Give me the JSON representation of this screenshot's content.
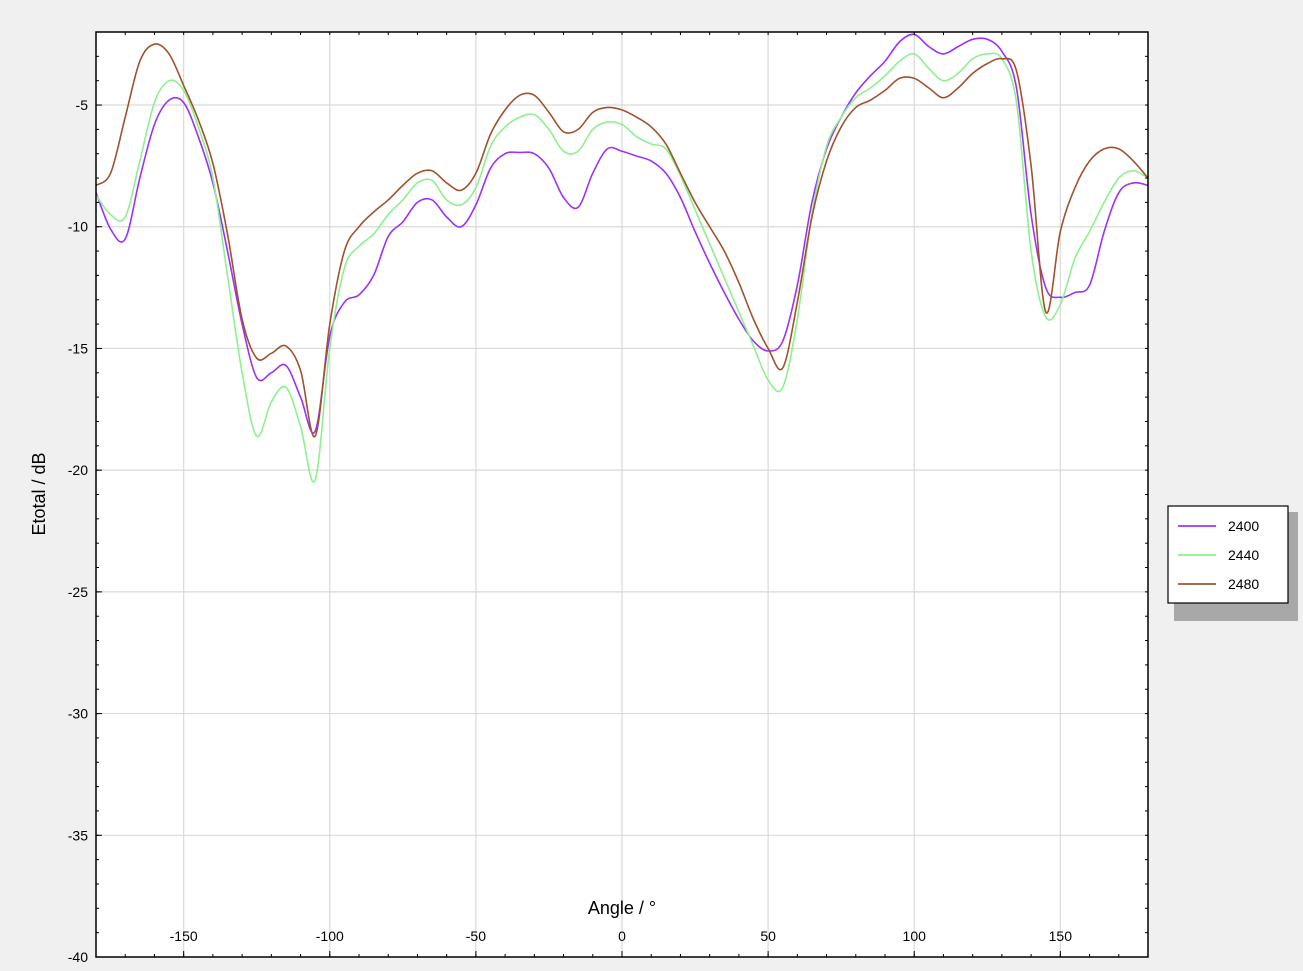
{
  "chart_data": {
    "type": "line",
    "xlabel": "Angle / °",
    "ylabel": "Etotal / dB",
    "xlim": [
      -180,
      180
    ],
    "ylim": [
      -40,
      -2
    ],
    "x_ticks": [
      -150,
      -100,
      -50,
      0,
      50,
      100,
      150
    ],
    "y_ticks": [
      -5,
      -10,
      -15,
      -20,
      -25,
      -30,
      -35,
      -40
    ],
    "grid": true,
    "legend_position": "right",
    "x": [
      -180,
      -175,
      -170,
      -165,
      -160,
      -155,
      -150,
      -145,
      -140,
      -135,
      -130,
      -125,
      -120,
      -115,
      -110,
      -105,
      -100,
      -95,
      -90,
      -85,
      -80,
      -75,
      -70,
      -65,
      -60,
      -55,
      -50,
      -45,
      -40,
      -35,
      -30,
      -25,
      -20,
      -15,
      -10,
      -5,
      0,
      5,
      10,
      15,
      20,
      25,
      30,
      35,
      40,
      45,
      50,
      55,
      60,
      65,
      70,
      75,
      80,
      85,
      90,
      95,
      100,
      105,
      110,
      115,
      120,
      125,
      130,
      135,
      140,
      145,
      150,
      155,
      160,
      165,
      170,
      175,
      180
    ],
    "series": [
      {
        "name": "2400",
        "color": "#9b30ff",
        "values": [
          -8.6,
          -10.1,
          -10.5,
          -8.0,
          -5.8,
          -4.8,
          -4.9,
          -6.3,
          -8.2,
          -11.0,
          -14.0,
          -16.2,
          -16.0,
          -15.7,
          -17.0,
          -18.4,
          -14.5,
          -13.1,
          -12.8,
          -12.0,
          -10.4,
          -9.8,
          -9.0,
          -8.9,
          -9.6,
          -10.0,
          -9.1,
          -7.6,
          -7.0,
          -6.95,
          -7.0,
          -7.6,
          -8.8,
          -9.2,
          -7.8,
          -6.8,
          -6.9,
          -7.1,
          -7.3,
          -7.8,
          -8.8,
          -10.2,
          -11.5,
          -12.7,
          -13.8,
          -14.7,
          -15.1,
          -14.7,
          -12.4,
          -9.0,
          -6.8,
          -5.5,
          -4.5,
          -3.8,
          -3.2,
          -2.4,
          -2.1,
          -2.6,
          -2.9,
          -2.6,
          -2.3,
          -2.3,
          -2.8,
          -4.3,
          -9.5,
          -12.5,
          -12.9,
          -12.7,
          -12.4,
          -10.2,
          -8.6,
          -8.2,
          -8.3
        ]
      },
      {
        "name": "2440",
        "color": "#8ef08e",
        "values": [
          -8.7,
          -9.5,
          -9.6,
          -7.3,
          -4.9,
          -4.0,
          -4.4,
          -5.9,
          -8.0,
          -12.0,
          -16.0,
          -18.6,
          -17.2,
          -16.6,
          -18.2,
          -20.4,
          -15.0,
          -11.7,
          -10.8,
          -10.3,
          -9.5,
          -8.9,
          -8.2,
          -8.1,
          -8.9,
          -9.1,
          -8.4,
          -6.7,
          -5.9,
          -5.5,
          -5.4,
          -6.0,
          -6.9,
          -6.9,
          -6.0,
          -5.7,
          -5.8,
          -6.3,
          -6.6,
          -6.8,
          -7.9,
          -9.3,
          -10.7,
          -12.1,
          -13.5,
          -14.9,
          -16.3,
          -16.6,
          -13.8,
          -9.5,
          -6.7,
          -5.5,
          -4.7,
          -4.3,
          -3.8,
          -3.2,
          -2.9,
          -3.5,
          -4.0,
          -3.7,
          -3.1,
          -2.9,
          -3.1,
          -4.9,
          -11.0,
          -13.7,
          -13.2,
          -11.3,
          -10.2,
          -9.0,
          -8.0,
          -7.7,
          -8.0
        ]
      },
      {
        "name": "2480",
        "color": "#a0522d",
        "values": [
          -8.3,
          -7.8,
          -5.5,
          -3.2,
          -2.5,
          -2.9,
          -4.2,
          -5.6,
          -7.4,
          -10.3,
          -13.8,
          -15.4,
          -15.2,
          -14.9,
          -15.9,
          -18.6,
          -14.0,
          -11.0,
          -10.0,
          -9.4,
          -8.9,
          -8.3,
          -7.8,
          -7.7,
          -8.2,
          -8.5,
          -7.8,
          -6.2,
          -5.2,
          -4.6,
          -4.6,
          -5.3,
          -6.1,
          -6.0,
          -5.3,
          -5.1,
          -5.2,
          -5.5,
          -5.9,
          -6.6,
          -7.8,
          -9.0,
          -10.0,
          -11.0,
          -12.3,
          -13.8,
          -15.0,
          -15.8,
          -13.1,
          -9.6,
          -7.3,
          -5.9,
          -5.1,
          -4.8,
          -4.4,
          -3.9,
          -3.9,
          -4.3,
          -4.7,
          -4.3,
          -3.7,
          -3.3,
          -3.1,
          -3.6,
          -7.5,
          -13.5,
          -10.2,
          -8.4,
          -7.3,
          -6.8,
          -6.8,
          -7.3,
          -8.0
        ]
      }
    ]
  }
}
